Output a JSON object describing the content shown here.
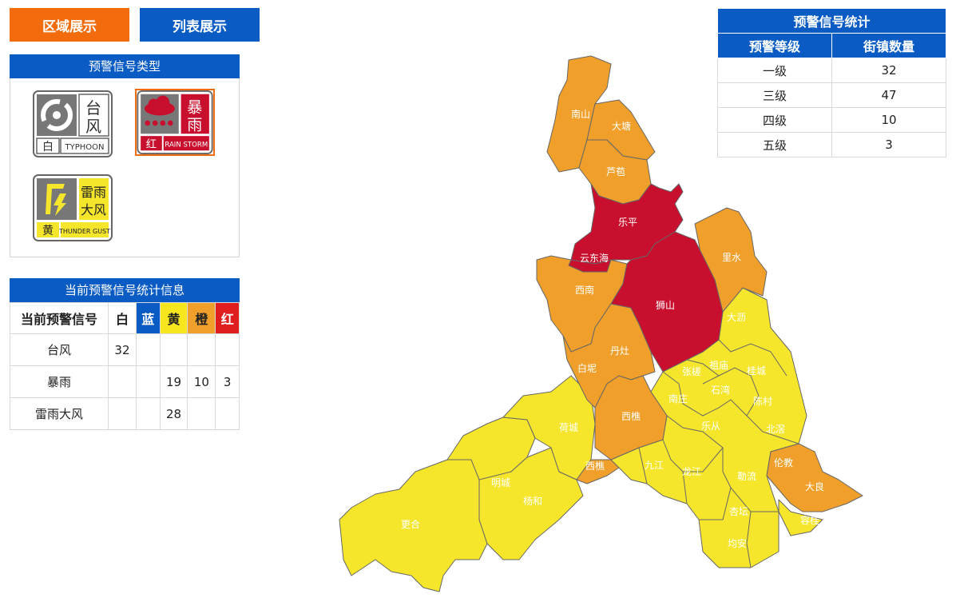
{
  "header": {
    "area_view": "区域展示",
    "list_view": "列表展示"
  },
  "signal_types": {
    "title": "预警信号类型",
    "items": [
      {
        "icon": "typhoon-icon",
        "title": "台风",
        "char1": "台",
        "char2": "风",
        "level": "白",
        "code": "TYPHOON"
      },
      {
        "icon": "rainstorm-icon",
        "title": "暴雨",
        "char1": "暴",
        "char2": "雨",
        "level": "红",
        "code": "RAIN STORM"
      },
      {
        "icon": "thunder-gust-icon",
        "title": "雷雨大风",
        "char1": "雷雨",
        "char2": "大风",
        "level": "黄",
        "code": "THUNDER GUST"
      }
    ]
  },
  "current_stats": {
    "title": "当前预警信号统计信息",
    "headers": [
      "当前预警信号",
      "白",
      "蓝",
      "黄",
      "橙",
      "红"
    ],
    "header_colors": [
      "#ffffff",
      "#ffffff",
      "#0a5cc4",
      "#f7e51d",
      "#f0a02a",
      "#e01e1e"
    ],
    "rows": [
      [
        "台风",
        "32",
        "",
        "",
        "",
        ""
      ],
      [
        "暴雨",
        "",
        "",
        "19",
        "10",
        "3"
      ],
      [
        "雷雨大风",
        "",
        "",
        "28",
        "",
        ""
      ]
    ]
  },
  "count_stats": {
    "title": "预警信号统计",
    "headers": [
      "预警等级",
      "街镇数量"
    ],
    "rows": [
      [
        "一级",
        "32"
      ],
      [
        "三级",
        "47"
      ],
      [
        "四级",
        "10"
      ],
      [
        "五级",
        "3"
      ]
    ]
  },
  "colors": {
    "red": "#c8102e",
    "orange": "#f0a02a",
    "yellow": "#f5e62c",
    "blue": "#0a5cc4",
    "accent": "#f26c0d"
  },
  "map_labels": [
    "南山",
    "大塘",
    "芦苞",
    "乐平",
    "云东海",
    "里水",
    "西南",
    "狮山",
    "大沥",
    "丹灶",
    "白坭",
    "西樵",
    "荷城",
    "西樵",
    "明城",
    "杨和",
    "更合",
    "张槎",
    "祖庙",
    "桂城",
    "石湾",
    "南庄",
    "陈村",
    "乐从",
    "北滘",
    "九江",
    "龙江",
    "勒流",
    "伦教",
    "大良",
    "杏坛",
    "容桂",
    "均安"
  ]
}
